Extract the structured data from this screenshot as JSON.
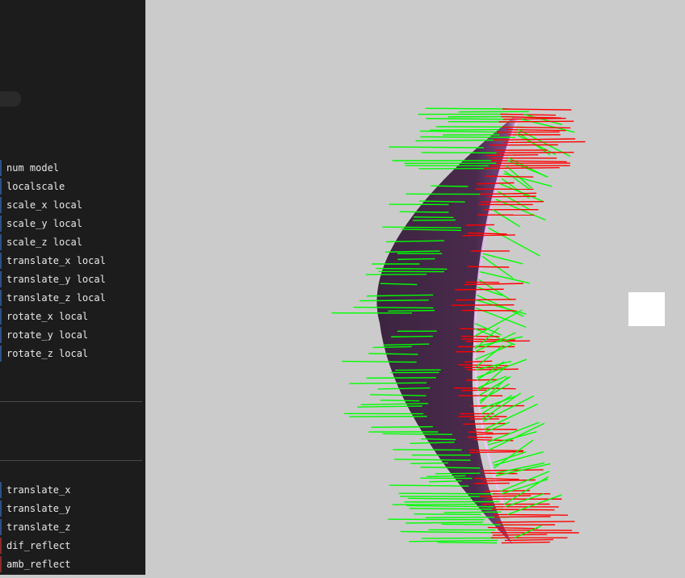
{
  "sidebar": {
    "params_top": [
      "num model",
      "localscale",
      "scale_x local",
      "scale_y local",
      "scale_z local",
      "translate_x local",
      "translate_y local",
      "translate_z local",
      "rotate_x local",
      "rotate_y local",
      "rotate_z local"
    ],
    "params_bottom": [
      "translate_x",
      "translate_y",
      "translate_z",
      "dif_reflect",
      "amb_reflect"
    ]
  },
  "colors": {
    "sidebar_bg": "#1c1c1c",
    "viewport_bg": "#cbcbcb",
    "surface_fill": "#4a2a4a",
    "surface_edge_highlight": "#e8b8f0",
    "normal_green": "#00ff00",
    "normal_red": "#ff0000"
  }
}
